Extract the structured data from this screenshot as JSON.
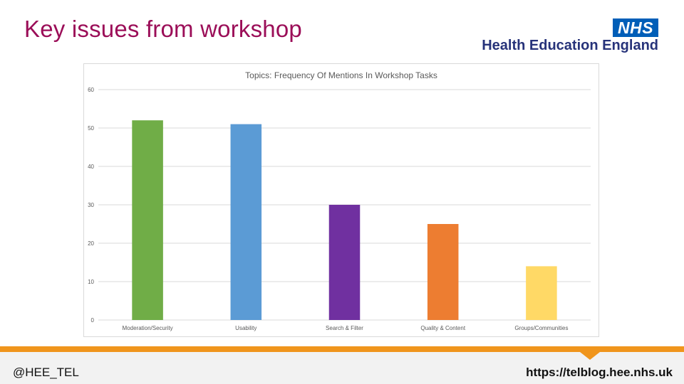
{
  "slide": {
    "title": "Key issues from workshop"
  },
  "logo": {
    "nhs": "NHS",
    "org": "Health Education England"
  },
  "footer": {
    "handle": "@HEE_TEL",
    "url": "https://telblog.hee.nhs.uk",
    "accent_color": "#f0951c"
  },
  "chart_data": {
    "type": "bar",
    "title": "Topics: Frequency Of Mentions In Workshop Tasks",
    "categories": [
      "Moderation/Security",
      "Usability",
      "Search & Filter",
      "Quality & Content",
      "Groups/Communities"
    ],
    "values": [
      52,
      51,
      30,
      25,
      14
    ],
    "colors": [
      "#70ad47",
      "#5b9bd5",
      "#7030a0",
      "#ed7d31",
      "#ffd966"
    ],
    "ylim": [
      0,
      60
    ],
    "yticks": [
      0,
      10,
      20,
      30,
      40,
      50,
      60
    ],
    "xlabel": "",
    "ylabel": "",
    "grid": true,
    "legend": "none"
  }
}
